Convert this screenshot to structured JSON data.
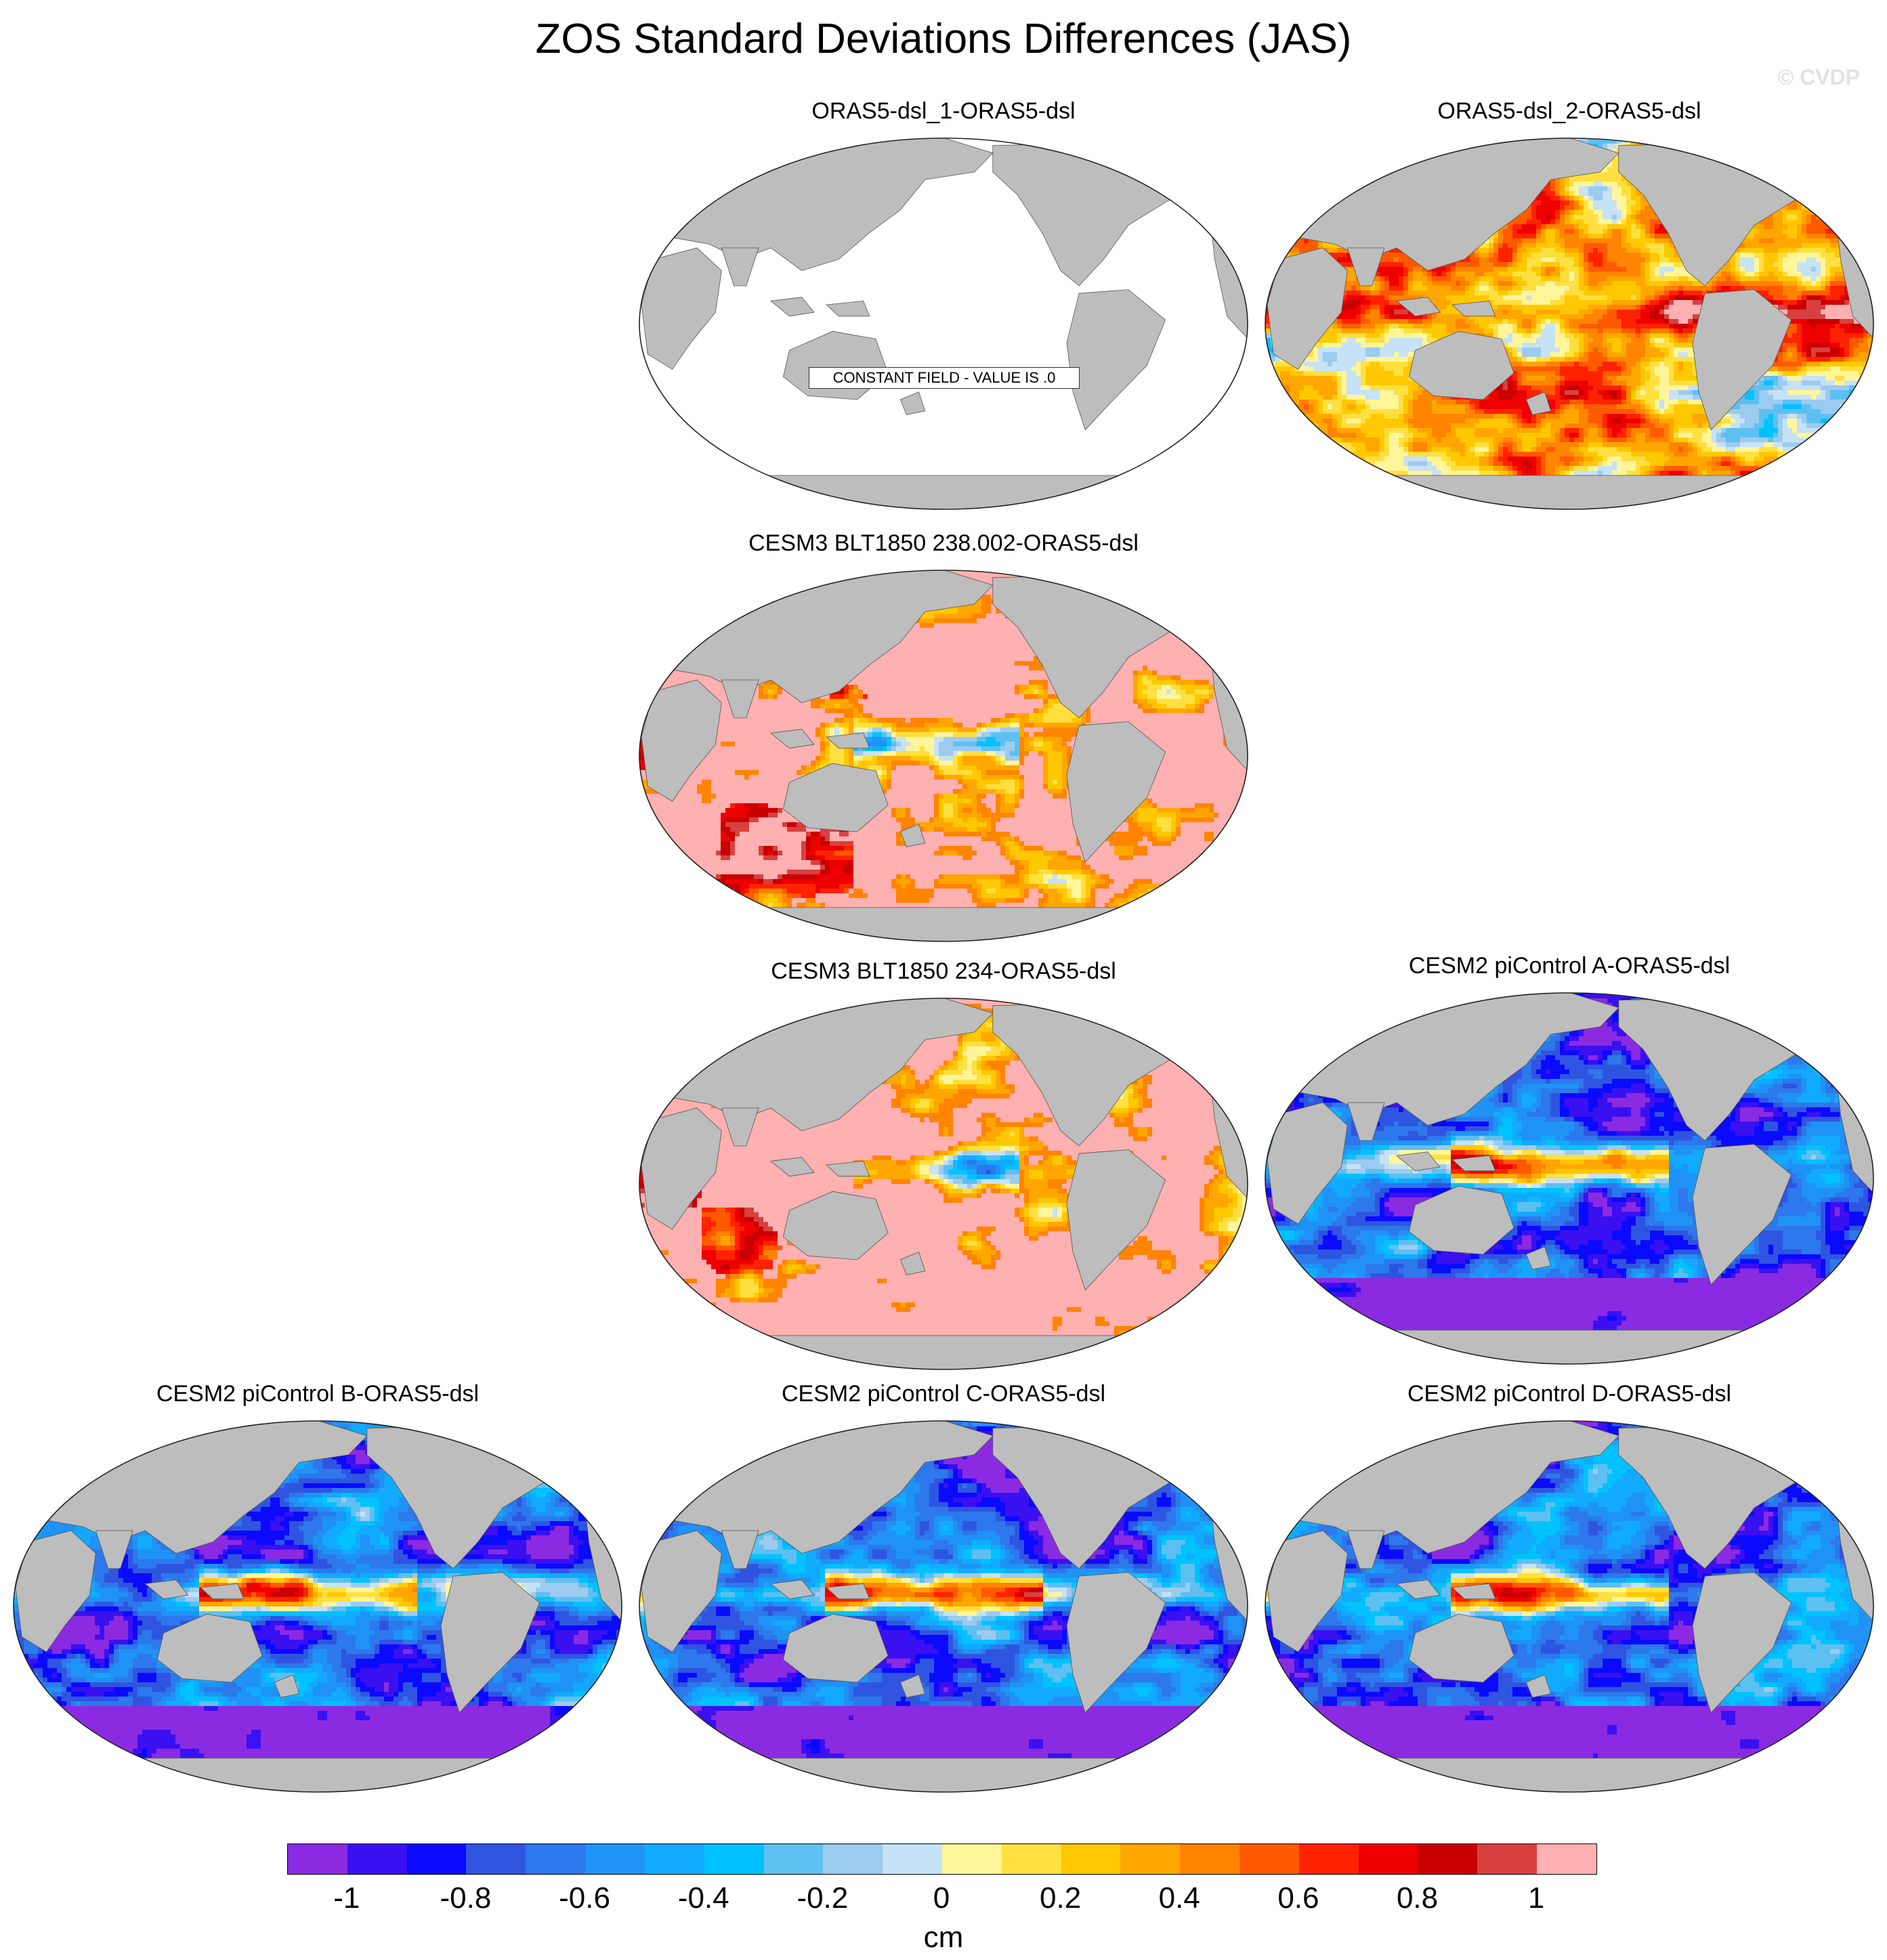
{
  "title": "ZOS Standard Deviations Differences (JAS)",
  "watermark": "© CVDP",
  "land_color": "#bdbdbd",
  "panels": [
    {
      "title": "ORAS5-dsl_1-ORAS5-dsl",
      "style": "constant",
      "message": "CONSTANT FIELD - VALUE IS .0"
    },
    {
      "title": "ORAS5-dsl_2-ORAS5-dsl",
      "style": "warm-mix"
    },
    {
      "title": "CESM3 BLT1850 238.002-ORAS5-dsl",
      "style": "pink-red"
    },
    {
      "title": "CESM3 BLT1850 234-ORAS5-dsl",
      "style": "pink-red"
    },
    {
      "title": "CESM2 piControl A-ORAS5-dsl",
      "style": "purple-blue"
    },
    {
      "title": "CESM2 piControl B-ORAS5-dsl",
      "style": "purple-blue"
    },
    {
      "title": "CESM2 piControl C-ORAS5-dsl",
      "style": "purple-blue"
    },
    {
      "title": "CESM2 piControl D-ORAS5-dsl",
      "style": "purple-blue"
    }
  ],
  "colorbar": {
    "colors": [
      "#8a2be2",
      "#3a10f0",
      "#0a0aff",
      "#2f55e0",
      "#2c78ec",
      "#1f93f5",
      "#12aaff",
      "#00c2ff",
      "#5ec0f0",
      "#9ccbf0",
      "#c6e2f6",
      "#fff59a",
      "#ffe040",
      "#ffc800",
      "#ffa700",
      "#ff8400",
      "#ff5a00",
      "#ff2200",
      "#ee0000",
      "#c80000",
      "#d84040",
      "#ffb0b0"
    ],
    "ticks": [
      "-1",
      "-0.8",
      "-0.6",
      "-0.4",
      "-0.2",
      "0",
      "0.2",
      "0.4",
      "0.6",
      "0.8",
      "1"
    ],
    "units": "cm"
  }
}
